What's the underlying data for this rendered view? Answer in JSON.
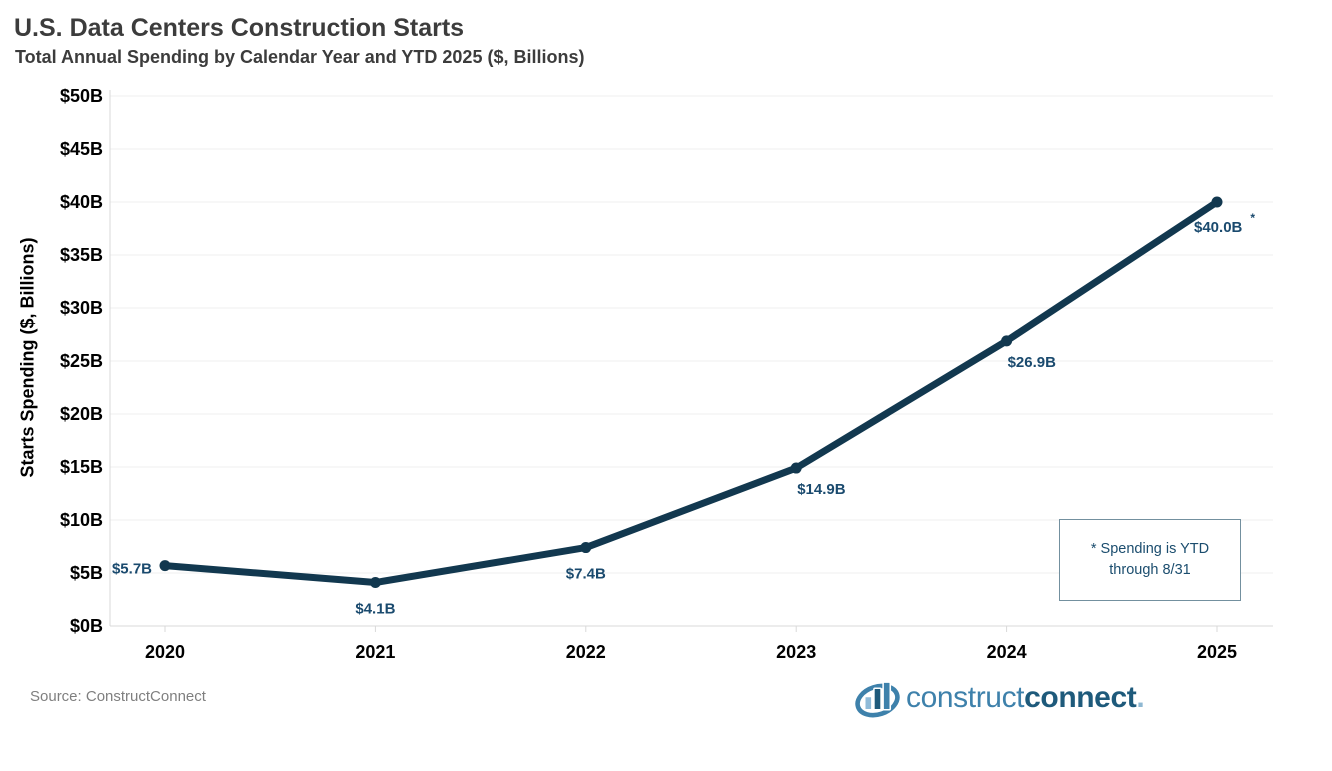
{
  "header": {
    "title": "U.S. Data Centers Construction Starts",
    "subtitle": "Total Annual Spending by Calendar Year and YTD 2025 ($, Billions)"
  },
  "chart_data": {
    "type": "line",
    "title": "U.S. Data Centers Construction Starts",
    "subtitle": "Total Annual Spending by Calendar Year and YTD 2025 ($, Billions)",
    "categories": [
      "2020",
      "2021",
      "2022",
      "2023",
      "2024",
      "2025"
    ],
    "values": [
      5.7,
      4.1,
      7.4,
      14.9,
      26.9,
      40.0
    ],
    "point_labels": [
      "$5.7B",
      "$4.1B",
      "$7.4B",
      "$14.9B",
      "$26.9B",
      "$40.0B"
    ],
    "label_positions": [
      "left",
      "below",
      "below",
      "below-right",
      "below-right",
      "below-star"
    ],
    "note_marker": "*",
    "xlabel": "",
    "ylabel": "Starts Spending ($, Billions)",
    "ylim": [
      0,
      50
    ],
    "ytick_step": 5,
    "ytick_labels": [
      "$0B",
      "$5B",
      "$10B",
      "$15B",
      "$20B",
      "$25B",
      "$30B",
      "$35B",
      "$40B",
      "$45B",
      "$50B"
    ],
    "grid": true,
    "legend": "none",
    "line_color": "#12384f",
    "label_color": "#1a4a6e",
    "grid_color": "#efefef",
    "axis_color": "#d9d9d9"
  },
  "annotation": {
    "line1": "* Spending is YTD",
    "line2": "through 8/31"
  },
  "footer": {
    "source": "Source: ConstructConnect"
  },
  "logo": {
    "construct": "construct",
    "connect": "connect",
    "period": "."
  }
}
